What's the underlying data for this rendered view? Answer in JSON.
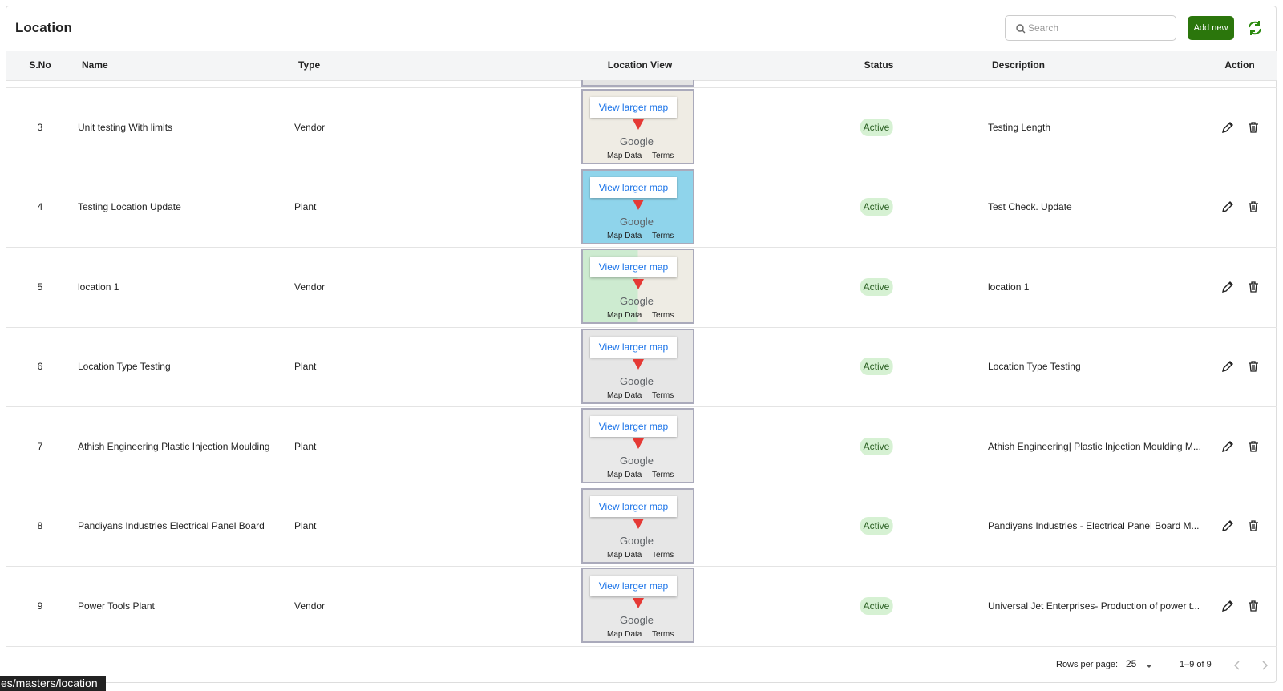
{
  "header": {
    "title": "Location",
    "search_placeholder": "Search",
    "add_button": "Add new"
  },
  "table": {
    "columns": [
      "S.No",
      "Name",
      "Type",
      "Location View",
      "Status",
      "Description",
      "Action"
    ],
    "rows": [
      {
        "sno": 3,
        "name": "Unit testing With limits",
        "type": "Vendor",
        "status": "Active",
        "description": "Testing Length"
      },
      {
        "sno": 4,
        "name": "Testing Location Update",
        "type": "Plant",
        "status": "Active",
        "description": "Test Check. Update"
      },
      {
        "sno": 5,
        "name": "location 1",
        "type": "Vendor",
        "status": "Active",
        "description": "location 1"
      },
      {
        "sno": 6,
        "name": "Location Type Testing",
        "type": "Plant",
        "status": "Active",
        "description": "Location Type Testing"
      },
      {
        "sno": 7,
        "name": "Athish Engineering Plastic Injection Moulding",
        "type": "Plant",
        "status": "Active",
        "description": "Athish Engineering| Plastic Injection Moulding M..."
      },
      {
        "sno": 8,
        "name": "Pandiyans Industries Electrical Panel Board",
        "type": "Plant",
        "status": "Active",
        "description": "Pandiyans Industries - Electrical Panel Board M..."
      },
      {
        "sno": 9,
        "name": "Power Tools Plant",
        "type": "Vendor",
        "status": "Active",
        "description": "Universal Jet Enterprises- Production of power t..."
      }
    ]
  },
  "map_embed": {
    "link": "View larger map",
    "logo": "Google",
    "map_data": "Map Data",
    "terms": "Terms"
  },
  "footer": {
    "rows_per_page_label": "Rows per page:",
    "rows_per_page": 25,
    "range": "1–9 of 9"
  },
  "status_bar": {
    "url": "es/masters/location"
  }
}
